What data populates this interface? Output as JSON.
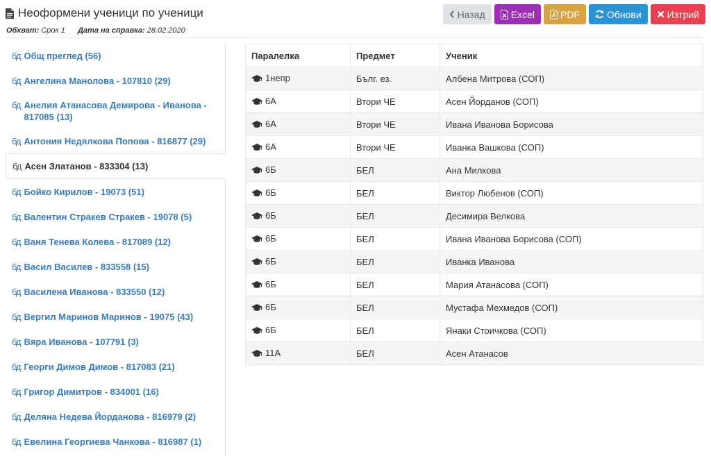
{
  "header": {
    "title": "Неоформени ученици по ученици",
    "scope_label": "Обхват:",
    "scope_value": "Срок 1",
    "date_label": "Дата на справка:",
    "date_value": "28.02.2020"
  },
  "toolbar": {
    "back_label": "Назад",
    "excel_label": "Excel",
    "pdf_label": "PDF",
    "refresh_label": "Обнови",
    "delete_label": "Изтрий"
  },
  "colors": {
    "back": "#dfe3e8",
    "excel": "#9d2fb5",
    "pdf": "#d9a33f",
    "refresh": "#2b93d6",
    "delete": "#e8404f",
    "link": "#3a7bb8"
  },
  "sidebar": {
    "items": [
      {
        "icon": "бд",
        "label": "Общ преглед (56)"
      },
      {
        "icon": "бд",
        "label": "Ангелина Манолова - 107810 (29)"
      },
      {
        "icon": "бд",
        "label": "Анелия Атанасова Демирова - Иванова - 817085 (13)"
      },
      {
        "icon": "бд",
        "label": "Антония Недялкова Попова - 816877 (29)"
      },
      {
        "icon": "бд",
        "label": "Асен Златанов - 833304 (13)"
      },
      {
        "icon": "бд",
        "label": "Бойко Кирилов - 19073 (51)"
      },
      {
        "icon": "бд",
        "label": "Валентин Стракев Стракев - 19078 (5)"
      },
      {
        "icon": "бд",
        "label": "Ваня Тенева Колева - 817089 (12)"
      },
      {
        "icon": "бд",
        "label": "Васил Василев - 833558 (15)"
      },
      {
        "icon": "бд",
        "label": "Василена Иванова - 833550 (12)"
      },
      {
        "icon": "бд",
        "label": "Вергил Маринов Маринов - 19075 (43)"
      },
      {
        "icon": "бд",
        "label": "Вяра Иванова - 107791 (3)"
      },
      {
        "icon": "бд",
        "label": "Георги Димов Димов - 817083 (21)"
      },
      {
        "icon": "бд",
        "label": "Григор Димитров - 834001 (16)"
      },
      {
        "icon": "бд",
        "label": "Деляна Недева Йорданова - 816979 (2)"
      },
      {
        "icon": "бд",
        "label": "Евелина Георгиева Чанкова - 816987 (1)"
      }
    ],
    "active_index": 4
  },
  "table": {
    "headers": [
      "Паралелка",
      "Предмет",
      "Ученик"
    ],
    "rows": [
      [
        "1непр",
        "Бълг. ез.",
        "Албена Митрова (СОП)"
      ],
      [
        "6А",
        "Втори ЧЕ",
        "Асен Йорданов (СОП)"
      ],
      [
        "6А",
        "Втори ЧЕ",
        "Ивана Иванова Борисова"
      ],
      [
        "6А",
        "Втори ЧЕ",
        "Иванка Вашкова (СОП)"
      ],
      [
        "6Б",
        "БЕЛ",
        "Ана Милкова"
      ],
      [
        "6Б",
        "БЕЛ",
        "Виктор Любенов (СОП)"
      ],
      [
        "6Б",
        "БЕЛ",
        "Десимира Велкова"
      ],
      [
        "6Б",
        "БЕЛ",
        "Ивана Иванова Борисова (СОП)"
      ],
      [
        "6Б",
        "БЕЛ",
        "Иванка Иванова"
      ],
      [
        "6Б",
        "БЕЛ",
        "Мария Атанасова (СОП)"
      ],
      [
        "6Б",
        "БЕЛ",
        "Мустафа Мехмедов (СОП)"
      ],
      [
        "6Б",
        "БЕЛ",
        "Янаки Стоичкова (СОП)"
      ],
      [
        "11А",
        "БЕЛ",
        "Асен Атанасов"
      ]
    ]
  }
}
